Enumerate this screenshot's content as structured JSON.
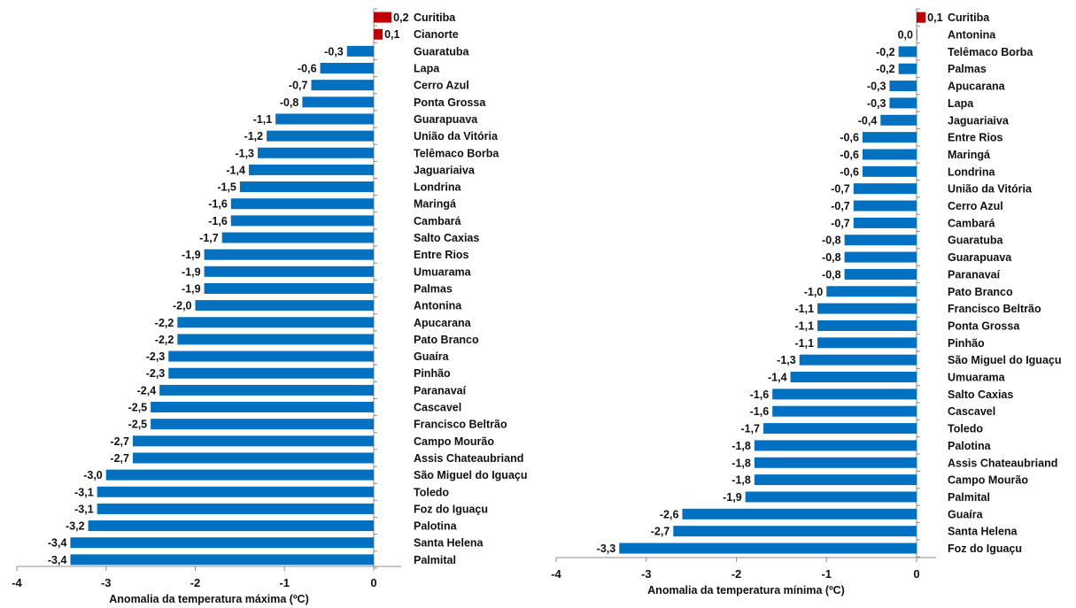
{
  "chart_data": [
    {
      "type": "bar",
      "orientation": "horizontal",
      "title": "",
      "xlabel": "Anomalia da temperatura máxima (ºC)",
      "ylabel": "",
      "xlim": [
        -4,
        0.3
      ],
      "xticks": [
        "-4",
        "-3",
        "-2",
        "-1",
        "0"
      ],
      "xtick_values": [
        -4,
        -3,
        -2,
        -1,
        0
      ],
      "colors": {
        "positive": "#C00000",
        "negative": "#0070C0"
      },
      "categories": [
        "Curitiba",
        "Cianorte",
        "Guaratuba",
        "Lapa",
        "Cerro Azul",
        "Ponta Grossa",
        "Guarapuava",
        "União da Vitória",
        "Telêmaco Borba",
        "Jaguariaiva",
        "Londrina",
        "Maringá",
        "Cambará",
        "Salto Caxias",
        "Entre Rios",
        "Umuarama",
        "Palmas",
        "Antonina",
        "Apucarana",
        "Pato Branco",
        "Guaíra",
        "Pinhão",
        "Paranavaí",
        "Cascavel",
        "Francisco Beltrão",
        "Campo Mourão",
        "Assis Chateaubriand",
        "São Miguel do Iguaçu",
        "Toledo",
        "Foz do Iguaçu",
        "Palotina",
        "Santa Helena",
        "Palmital"
      ],
      "values": [
        0.2,
        0.1,
        -0.3,
        -0.6,
        -0.7,
        -0.8,
        -1.1,
        -1.2,
        -1.3,
        -1.4,
        -1.5,
        -1.6,
        -1.6,
        -1.7,
        -1.9,
        -1.9,
        -1.9,
        -2.0,
        -2.2,
        -2.2,
        -2.3,
        -2.3,
        -2.4,
        -2.5,
        -2.5,
        -2.7,
        -2.7,
        -3.0,
        -3.1,
        -3.1,
        -3.2,
        -3.4,
        -3.4
      ],
      "labels": [
        "0,2",
        "0,1",
        "-0,3",
        "-0,6",
        "-0,7",
        "-0,8",
        "-1,1",
        "-1,2",
        "-1,3",
        "-1,4",
        "-1,5",
        "-1,6",
        "-1,6",
        "-1,7",
        "-1,9",
        "-1,9",
        "-1,9",
        "-2,0",
        "-2,2",
        "-2,2",
        "-2,3",
        "-2,3",
        "-2,4",
        "-2,5",
        "-2,5",
        "-2,7",
        "-2,7",
        "-3,0",
        "-3,1",
        "-3,1",
        "-3,2",
        "-3,4",
        "-3,4"
      ],
      "grid": false,
      "legend": "none"
    },
    {
      "type": "bar",
      "orientation": "horizontal",
      "title": "",
      "xlabel": "Anomalia da temperatura mínima (ºC)",
      "ylabel": "",
      "xlim": [
        -4,
        0.2
      ],
      "xticks": [
        "-4",
        "-3",
        "-2",
        "-1",
        "0"
      ],
      "xtick_values": [
        -4,
        -3,
        -2,
        -1,
        0
      ],
      "colors": {
        "positive": "#C00000",
        "negative": "#0070C0"
      },
      "categories": [
        "Curitiba",
        "Antonina",
        "Telêmaco Borba",
        "Palmas",
        "Apucarana",
        "Lapa",
        "Jaguariaiva",
        "Entre Rios",
        "Maringá",
        "Londrina",
        "União da Vitória",
        "Cerro Azul",
        "Cambará",
        "Guaratuba",
        "Guarapuava",
        "Paranavaí",
        "Pato Branco",
        "Francisco Beltrão",
        "Ponta Grossa",
        "Pinhão",
        "São Miguel do Iguaçu",
        "Umuarama",
        "Salto Caxias",
        "Cascavel",
        "Toledo",
        "Palotina",
        "Assis Chateaubriand",
        "Campo Mourão",
        "Palmital",
        "Guaíra",
        "Santa Helena",
        "Foz do Iguaçu"
      ],
      "values": [
        0.1,
        0.0,
        -0.2,
        -0.2,
        -0.3,
        -0.3,
        -0.4,
        -0.6,
        -0.6,
        -0.6,
        -0.7,
        -0.7,
        -0.7,
        -0.8,
        -0.8,
        -0.8,
        -1.0,
        -1.1,
        -1.1,
        -1.1,
        -1.3,
        -1.4,
        -1.6,
        -1.6,
        -1.7,
        -1.8,
        -1.8,
        -1.8,
        -1.9,
        -2.6,
        -2.7,
        -3.3
      ],
      "labels": [
        "0,1",
        "0,0",
        "-0,2",
        "-0,2",
        "-0,3",
        "-0,3",
        "-0,4",
        "-0,6",
        "-0,6",
        "-0,6",
        "-0,7",
        "-0,7",
        "-0,7",
        "-0,8",
        "-0,8",
        "-0,8",
        "-1,0",
        "-1,1",
        "-1,1",
        "-1,1",
        "-1,3",
        "-1,4",
        "-1,6",
        "-1,6",
        "-1,7",
        "-1,8",
        "-1,8",
        "-1,8",
        "-1,9",
        "-2,6",
        "-2,7",
        "-3,3"
      ],
      "grid": false,
      "legend": "none"
    }
  ]
}
